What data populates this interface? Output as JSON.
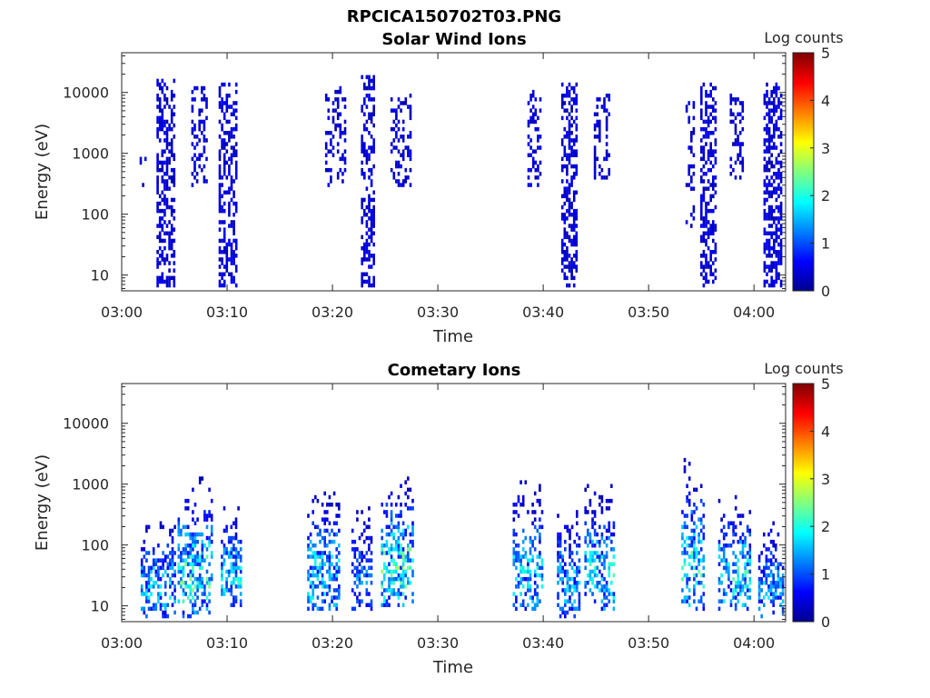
{
  "figure_title": "RPCICA150702T03.PNG",
  "colormap": [
    "#00008f",
    "#0000ff",
    "#0080ff",
    "#00ffff",
    "#80ff80",
    "#ffff00",
    "#ff8000",
    "#ff0000",
    "#800000"
  ],
  "chart_data": [
    {
      "type": "heatmap",
      "title": "Solar Wind Ions",
      "xlabel": "Time",
      "ylabel": "Energy (eV)",
      "yscale": "log",
      "ylim": [
        5.5,
        45000
      ],
      "yticks": [
        10,
        100,
        1000,
        10000
      ],
      "ytick_labels": [
        "10",
        "100",
        "1000",
        "10000"
      ],
      "xlim_minutes": [
        0,
        63
      ],
      "xticks_minutes": [
        0,
        10,
        20,
        30,
        40,
        50,
        60
      ],
      "xtick_labels": [
        "03:00",
        "03:10",
        "03:20",
        "03:30",
        "03:40",
        "03:50",
        "04:00"
      ],
      "colorbar": {
        "label": "Log counts",
        "range": [
          0,
          5
        ],
        "ticks": [
          "0",
          "1",
          "2",
          "3",
          "4",
          "5"
        ]
      },
      "bursts": [
        {
          "t0": 1.7,
          "t1": 2.2,
          "emin": 300,
          "emax": 2000,
          "level": 0.45,
          "density": 0.3
        },
        {
          "t0": 3.3,
          "t1": 4.9,
          "emin": 6,
          "emax": 16000,
          "level": 0.5,
          "density": 0.55
        },
        {
          "t0": 6.6,
          "t1": 8.0,
          "emin": 300,
          "emax": 12000,
          "level": 0.45,
          "density": 0.35
        },
        {
          "t0": 9.2,
          "t1": 10.8,
          "emin": 6,
          "emax": 14000,
          "level": 0.5,
          "density": 0.55
        },
        {
          "t0": 19.3,
          "t1": 21.2,
          "emin": 300,
          "emax": 12000,
          "level": 0.45,
          "density": 0.35
        },
        {
          "t0": 22.7,
          "t1": 24.0,
          "emin": 6,
          "emax": 20000,
          "level": 0.5,
          "density": 0.55
        },
        {
          "t0": 25.5,
          "t1": 27.3,
          "emin": 300,
          "emax": 10000,
          "level": 0.45,
          "density": 0.35
        },
        {
          "t0": 38.5,
          "t1": 39.8,
          "emin": 300,
          "emax": 11000,
          "level": 0.45,
          "density": 0.35
        },
        {
          "t0": 41.7,
          "t1": 43.2,
          "emin": 6,
          "emax": 15000,
          "level": 0.5,
          "density": 0.55
        },
        {
          "t0": 44.8,
          "t1": 46.3,
          "emin": 400,
          "emax": 9000,
          "level": 0.45,
          "density": 0.35
        },
        {
          "t0": 53.5,
          "t1": 54.2,
          "emin": 60,
          "emax": 9000,
          "level": 0.45,
          "density": 0.25
        },
        {
          "t0": 54.9,
          "t1": 56.3,
          "emin": 6,
          "emax": 15000,
          "level": 0.5,
          "density": 0.55
        },
        {
          "t0": 57.7,
          "t1": 59.0,
          "emin": 400,
          "emax": 9000,
          "level": 0.45,
          "density": 0.35
        },
        {
          "t0": 60.9,
          "t1": 62.5,
          "emin": 6,
          "emax": 14000,
          "level": 0.5,
          "density": 0.6
        }
      ]
    },
    {
      "type": "heatmap",
      "title": "Cometary Ions",
      "xlabel": "Time",
      "ylabel": "Energy (eV)",
      "yscale": "log",
      "ylim": [
        5.5,
        45000
      ],
      "yticks": [
        10,
        100,
        1000,
        10000
      ],
      "ytick_labels": [
        "10",
        "100",
        "1000",
        "10000"
      ],
      "xlim_minutes": [
        0,
        63
      ],
      "xticks_minutes": [
        0,
        10,
        20,
        30,
        40,
        50,
        60
      ],
      "xtick_labels": [
        "03:00",
        "03:10",
        "03:20",
        "03:30",
        "03:40",
        "03:50",
        "04:00"
      ],
      "colorbar": {
        "label": "Log counts",
        "range": [
          0,
          5
        ],
        "ticks": [
          "0",
          "1",
          "2",
          "3",
          "4",
          "5"
        ]
      },
      "bursts": [
        {
          "t0": 1.8,
          "t1": 5.0,
          "emin": 6,
          "emax": 350,
          "level": 1.2,
          "density": 0.5
        },
        {
          "t0": 5.3,
          "t1": 8.6,
          "emin": 6,
          "emax": 1300,
          "level": 1.6,
          "density": 0.55
        },
        {
          "t0": 9.4,
          "t1": 11.2,
          "emin": 10,
          "emax": 420,
          "level": 1.4,
          "density": 0.55
        },
        {
          "t0": 17.6,
          "t1": 20.6,
          "emin": 8,
          "emax": 850,
          "level": 1.4,
          "density": 0.55
        },
        {
          "t0": 21.8,
          "t1": 23.7,
          "emin": 8,
          "emax": 420,
          "level": 1.0,
          "density": 0.5
        },
        {
          "t0": 24.6,
          "t1": 27.6,
          "emin": 10,
          "emax": 1400,
          "level": 1.7,
          "density": 0.55
        },
        {
          "t0": 37.1,
          "t1": 40.0,
          "emin": 8,
          "emax": 1150,
          "level": 1.3,
          "density": 0.5
        },
        {
          "t0": 41.3,
          "t1": 43.4,
          "emin": 6,
          "emax": 420,
          "level": 1.2,
          "density": 0.5
        },
        {
          "t0": 43.9,
          "t1": 46.7,
          "emin": 8,
          "emax": 1000,
          "level": 1.4,
          "density": 0.5
        },
        {
          "t0": 53.1,
          "t1": 55.3,
          "emin": 8,
          "emax": 2800,
          "level": 1.5,
          "density": 0.45
        },
        {
          "t0": 56.6,
          "t1": 59.6,
          "emin": 8,
          "emax": 700,
          "level": 1.5,
          "density": 0.5
        },
        {
          "t0": 60.4,
          "t1": 62.8,
          "emin": 6,
          "emax": 320,
          "level": 1.2,
          "density": 0.5
        }
      ]
    }
  ]
}
